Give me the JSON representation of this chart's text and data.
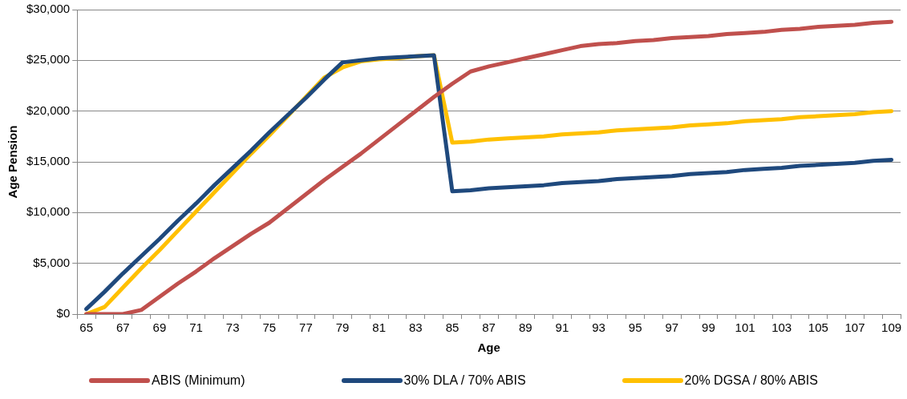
{
  "chart_data": {
    "type": "line",
    "xlabel": "Age",
    "ylabel": "Age Pension",
    "categories": [
      "65",
      null,
      "67",
      null,
      "69",
      null,
      "71",
      null,
      "73",
      null,
      "75",
      null,
      "77",
      null,
      "79",
      null,
      "81",
      null,
      "83",
      null,
      "85",
      null,
      "87",
      null,
      "89",
      null,
      "91",
      null,
      "93",
      null,
      "95",
      null,
      "97",
      null,
      "99",
      null,
      "101",
      null,
      "103",
      null,
      "105",
      null,
      "107",
      null,
      "109"
    ],
    "series": [
      {
        "name": "ABIS (Minimum)",
        "color": "#c0504d",
        "values": [
          0,
          0,
          0,
          400,
          1700,
          3000,
          4200,
          5500,
          6700,
          7900,
          9000,
          10400,
          11800,
          13200,
          14500,
          15800,
          17200,
          18600,
          20000,
          21400,
          22700,
          23900,
          24400,
          24800,
          25200,
          25600,
          26000,
          26400,
          26600,
          26700,
          26900,
          27000,
          27200,
          27300,
          27400,
          27600,
          27700,
          27800,
          28000,
          28100,
          28300,
          28400,
          28500,
          28700,
          28800
        ]
      },
      {
        "name": "30% DLA / 70% ABIS",
        "color": "#1f497d",
        "values": [
          500,
          2200,
          4000,
          5700,
          7400,
          9200,
          10900,
          12700,
          14400,
          16100,
          17900,
          19600,
          21300,
          23100,
          24800,
          25000,
          25200,
          25300,
          25400,
          25500,
          12100,
          12200,
          12400,
          12500,
          12600,
          12700,
          12900,
          13000,
          13100,
          13300,
          13400,
          13500,
          13600,
          13800,
          13900,
          14000,
          14200,
          14300,
          14400,
          14600,
          14700,
          14800,
          14900,
          15100,
          15200
        ]
      },
      {
        "name": "20% DGSA / 80% ABIS",
        "color": "#ffc000",
        "values": [
          0,
          700,
          2600,
          4500,
          6300,
          8200,
          10100,
          12000,
          13900,
          15800,
          17600,
          19500,
          21400,
          23300,
          24300,
          24900,
          25100,
          25200,
          25400,
          25500,
          16900,
          17000,
          17200,
          17300,
          17400,
          17500,
          17700,
          17800,
          17900,
          18100,
          18200,
          18300,
          18400,
          18600,
          18700,
          18800,
          19000,
          19100,
          19200,
          19400,
          19500,
          19600,
          19700,
          19900,
          20000
        ]
      }
    ],
    "ylim": [
      0,
      30000
    ],
    "yticks": [
      {
        "value": 0,
        "label": "$0"
      },
      {
        "value": 5000,
        "label": "$5,000"
      },
      {
        "value": 10000,
        "label": "$10,000"
      },
      {
        "value": 15000,
        "label": "$15,000"
      },
      {
        "value": 20000,
        "label": "$20,000"
      },
      {
        "value": 25000,
        "label": "$25,000"
      },
      {
        "value": 30000,
        "label": "$30,000"
      }
    ],
    "grid": "y",
    "legend": "bottom",
    "marker": "none",
    "line_style": "solid"
  }
}
